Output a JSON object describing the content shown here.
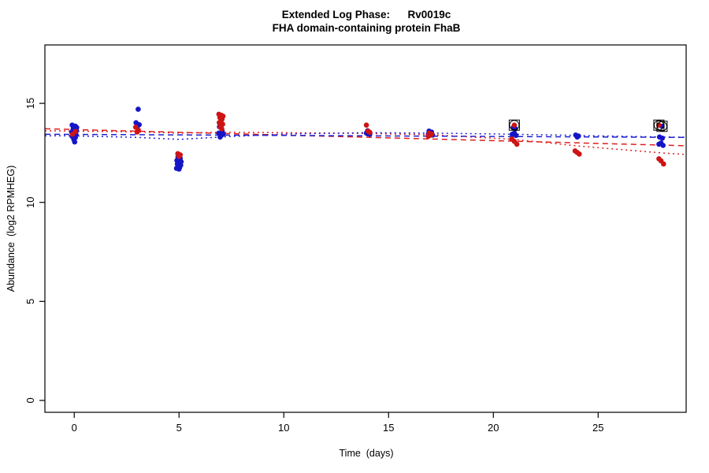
{
  "chart_data": {
    "type": "scatter",
    "title": "Extended Log Phase:      Rv0019c",
    "subtitle": "FHA domain-containing protein FhaB",
    "xlabel": "Time  (days)",
    "ylabel": "Abundance  (log2 RPMHEG)",
    "xlim": [
      -1.4,
      29.2
    ],
    "ylim": [
      -0.6,
      17.95
    ],
    "x_ticks": [
      0,
      5,
      10,
      15,
      20,
      25
    ],
    "y_ticks": [
      0,
      5,
      10,
      15
    ],
    "grid": false,
    "legend": "none",
    "series": [
      {
        "name": "blue",
        "color": "#1515c8",
        "points": [
          [
            -0.1,
            13.9
          ],
          [
            0.05,
            13.85
          ],
          [
            0.12,
            13.78
          ],
          [
            -0.05,
            13.72
          ],
          [
            0.0,
            13.66
          ],
          [
            0.1,
            13.6
          ],
          [
            -0.12,
            13.55
          ],
          [
            0.04,
            13.5
          ],
          [
            -0.07,
            13.45
          ],
          [
            0.08,
            13.4
          ],
          [
            -0.1,
            13.33
          ],
          [
            0.05,
            13.27
          ],
          [
            -0.02,
            13.18
          ],
          [
            0.02,
            13.05
          ],
          [
            3.05,
            14.7
          ],
          [
            2.95,
            14.02
          ],
          [
            3.1,
            13.92
          ],
          [
            3.0,
            13.78
          ],
          [
            4.95,
            12.3
          ],
          [
            5.06,
            12.22
          ],
          [
            4.9,
            12.12
          ],
          [
            5.1,
            12.05
          ],
          [
            5.0,
            12.0
          ],
          [
            4.92,
            11.94
          ],
          [
            5.08,
            11.88
          ],
          [
            4.97,
            11.82
          ],
          [
            5.03,
            11.76
          ],
          [
            4.88,
            11.72
          ],
          [
            5.0,
            11.68
          ],
          [
            7.0,
            14.3
          ],
          [
            6.93,
            13.82
          ],
          [
            7.06,
            13.6
          ],
          [
            6.9,
            13.5
          ],
          [
            7.1,
            13.44
          ],
          [
            7.0,
            13.37
          ],
          [
            6.96,
            13.3
          ],
          [
            14.0,
            13.62
          ],
          [
            14.07,
            13.55
          ],
          [
            13.94,
            13.5
          ],
          [
            14.1,
            13.44
          ],
          [
            16.93,
            13.6
          ],
          [
            17.05,
            13.55
          ],
          [
            17.0,
            13.5
          ],
          [
            16.9,
            13.45
          ],
          [
            17.1,
            13.4
          ],
          [
            20.95,
            13.78
          ],
          [
            21.05,
            13.72
          ],
          [
            21.0,
            13.5
          ],
          [
            20.9,
            13.44
          ],
          [
            21.08,
            13.38
          ],
          [
            23.93,
            13.4
          ],
          [
            24.06,
            13.35
          ],
          [
            24.0,
            13.3
          ],
          [
            27.93,
            13.3
          ],
          [
            28.06,
            13.24
          ],
          [
            28.0,
            13.0
          ],
          [
            27.9,
            12.94
          ],
          [
            28.1,
            12.88
          ],
          [
            28.05,
            13.84
          ]
        ]
      },
      {
        "name": "red",
        "color": "#cd1414",
        "points": [
          [
            0.06,
            13.58
          ],
          [
            -0.08,
            13.44
          ],
          [
            2.93,
            13.8
          ],
          [
            3.06,
            13.65
          ],
          [
            3.0,
            13.55
          ],
          [
            4.94,
            12.46
          ],
          [
            5.06,
            12.4
          ],
          [
            5.0,
            12.32
          ],
          [
            6.9,
            14.45
          ],
          [
            7.02,
            14.4
          ],
          [
            7.1,
            14.35
          ],
          [
            6.95,
            14.28
          ],
          [
            7.05,
            14.2
          ],
          [
            7.0,
            14.12
          ],
          [
            6.92,
            14.03
          ],
          [
            7.08,
            13.95
          ],
          [
            7.0,
            13.88
          ],
          [
            6.97,
            13.8
          ],
          [
            7.04,
            13.72
          ],
          [
            13.94,
            13.9
          ],
          [
            14.02,
            13.6
          ],
          [
            14.1,
            13.54
          ],
          [
            16.94,
            13.5
          ],
          [
            17.06,
            13.45
          ],
          [
            17.0,
            13.4
          ],
          [
            16.9,
            13.34
          ],
          [
            20.88,
            13.2
          ],
          [
            21.0,
            13.08
          ],
          [
            21.12,
            12.94
          ],
          [
            23.9,
            12.6
          ],
          [
            24.0,
            12.52
          ],
          [
            24.1,
            12.44
          ],
          [
            27.9,
            12.2
          ],
          [
            28.0,
            12.1
          ],
          [
            28.12,
            11.94
          ],
          [
            21.0,
            13.9
          ],
          [
            27.9,
            13.9
          ]
        ]
      }
    ],
    "flagged_points": [
      {
        "x": 21.0,
        "y": 13.9
      },
      {
        "x": 27.9,
        "y": 13.9
      },
      {
        "x": 28.05,
        "y": 13.84
      }
    ],
    "trend_lines": [
      {
        "name": "red-linear",
        "color": "#e02020",
        "dash": "7,5",
        "points": [
          [
            -1.4,
            13.72
          ],
          [
            29.2,
            12.86
          ]
        ]
      },
      {
        "name": "red-smooth",
        "color": "#e02020",
        "dash": "2,4",
        "points": [
          [
            -1.4,
            13.62
          ],
          [
            0,
            13.6
          ],
          [
            3,
            13.56
          ],
          [
            5,
            13.5
          ],
          [
            7,
            13.54
          ],
          [
            10,
            13.52
          ],
          [
            14,
            13.48
          ],
          [
            17,
            13.42
          ],
          [
            21,
            13.18
          ],
          [
            24,
            12.85
          ],
          [
            28,
            12.5
          ],
          [
            29.2,
            12.42
          ]
        ]
      },
      {
        "name": "blue-linear",
        "color": "#2020d0",
        "dash": "7,5",
        "points": [
          [
            -1.4,
            13.44
          ],
          [
            29.2,
            13.28
          ]
        ]
      },
      {
        "name": "blue-smooth",
        "color": "#2020d0",
        "dash": "2,4",
        "points": [
          [
            -1.4,
            13.36
          ],
          [
            0,
            13.36
          ],
          [
            3,
            13.28
          ],
          [
            5,
            13.18
          ],
          [
            7,
            13.3
          ],
          [
            10,
            13.45
          ],
          [
            14,
            13.52
          ],
          [
            17,
            13.5
          ],
          [
            21,
            13.44
          ],
          [
            24,
            13.38
          ],
          [
            28,
            13.3
          ],
          [
            29.2,
            13.29
          ]
        ]
      }
    ]
  }
}
